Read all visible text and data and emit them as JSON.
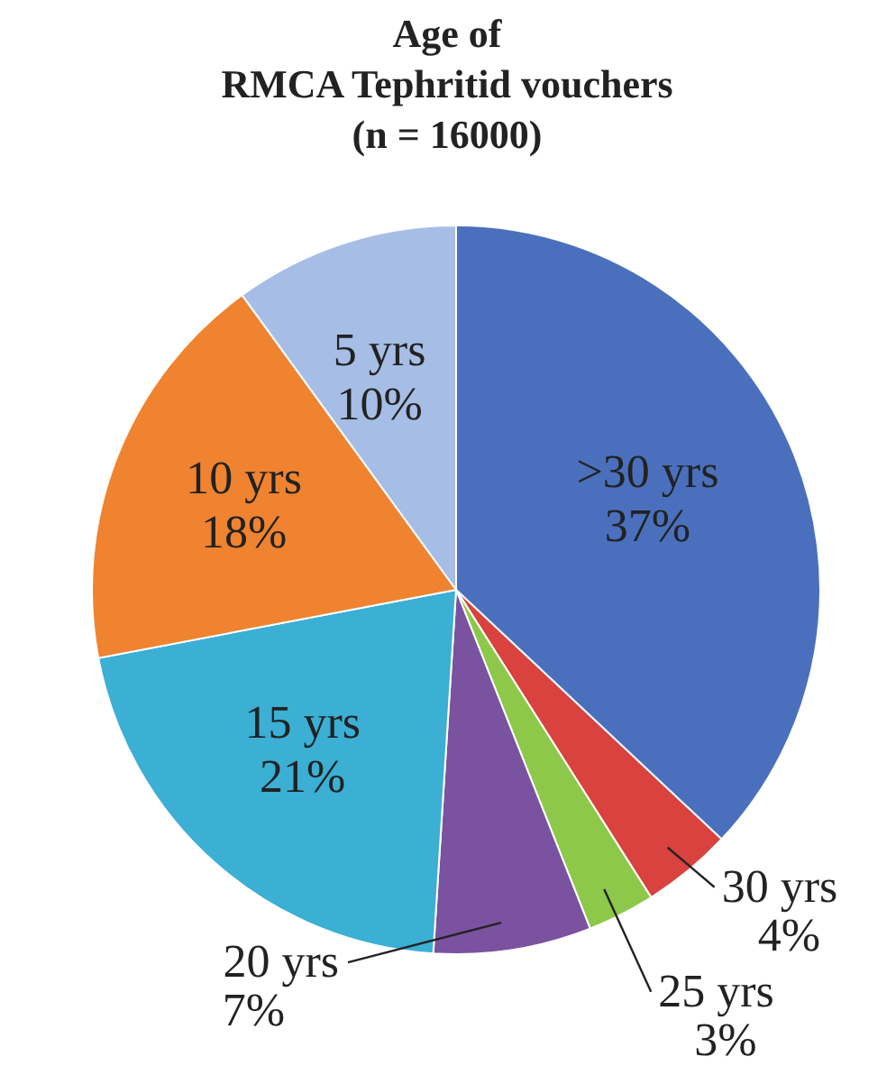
{
  "chart_data": {
    "type": "pie",
    "title": "Age of\nRMCA Tephritid vouchers\n(n = 16000)",
    "categories": [
      ">30 yrs",
      "30 yrs",
      "25 yrs",
      "20 yrs",
      "15 yrs",
      "10 yrs",
      "5 yrs"
    ],
    "values": [
      37,
      4,
      3,
      7,
      21,
      18,
      10
    ],
    "value_labels": [
      "37%",
      "4%",
      "3%",
      "7%",
      "21%",
      "18%",
      "10%"
    ],
    "colors": [
      "#4a70bd",
      "#d9423e",
      "#8dc84a",
      "#7a52a0",
      "#3bafd4",
      "#ef8330",
      "#a6bee6"
    ]
  }
}
